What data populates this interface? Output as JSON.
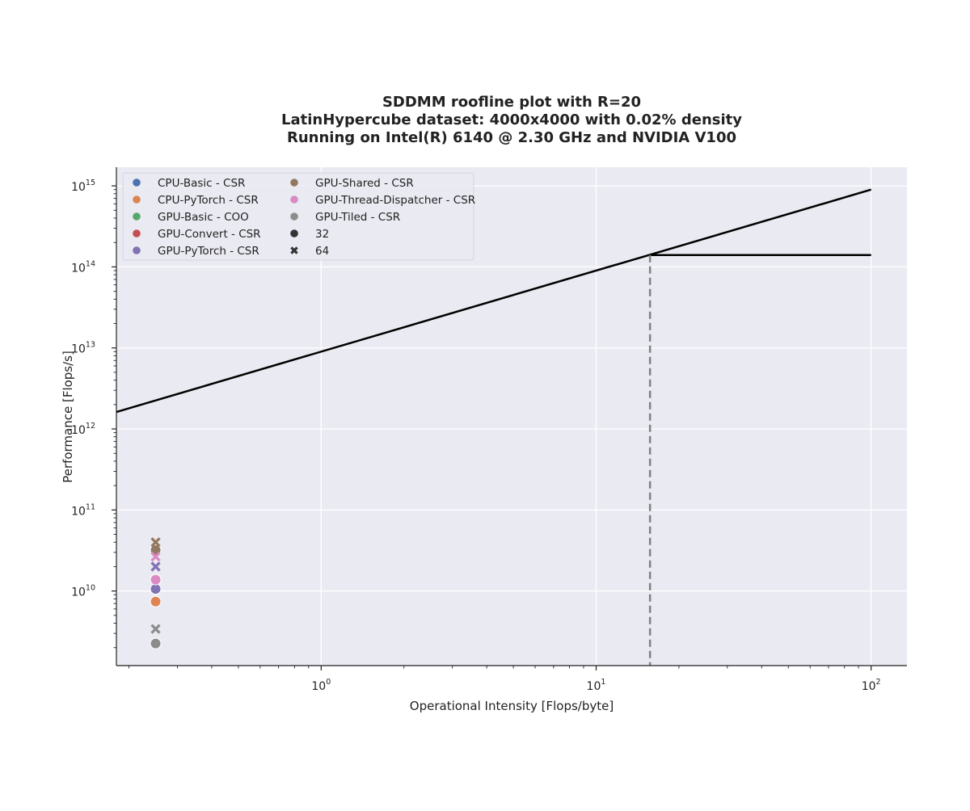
{
  "chart_data": {
    "type": "scatter",
    "title_lines": [
      "SDDMM roofline plot with R=20",
      "LatinHypercube dataset: 4000x4000 with 0.02% density",
      "Running on Intel(R) 6140 @ 2.30 GHz and NVIDIA V100"
    ],
    "xlabel": "Operational Intensity [Flops/byte]",
    "ylabel": "Performance [Flops/s]",
    "x_scale": "log",
    "y_scale": "log",
    "xlim": [
      0.18,
      135
    ],
    "ylim": [
      1200000000.0,
      1700000000000000.0
    ],
    "x_major_ticks": [
      {
        "value": 1,
        "base": "10",
        "exp": "0"
      },
      {
        "value": 10,
        "base": "10",
        "exp": "1"
      },
      {
        "value": 100,
        "base": "10",
        "exp": "2"
      }
    ],
    "y_major_ticks": [
      {
        "value": 10000000000.0,
        "base": "10",
        "exp": "10"
      },
      {
        "value": 100000000000.0,
        "base": "10",
        "exp": "11"
      },
      {
        "value": 1000000000000.0,
        "base": "10",
        "exp": "12"
      },
      {
        "value": 10000000000000.0,
        "base": "10",
        "exp": "13"
      },
      {
        "value": 100000000000000.0,
        "base": "10",
        "exp": "14"
      },
      {
        "value": 1000000000000000.0,
        "base": "10",
        "exp": "15"
      }
    ],
    "grid": true,
    "legend_position": "upper-left",
    "legend": {
      "hue_entries": [
        {
          "label": "CPU-Basic - CSR",
          "color": "#4c72b0"
        },
        {
          "label": "CPU-PyTorch - CSR",
          "color": "#dd8452"
        },
        {
          "label": "GPU-Basic - COO",
          "color": "#55a868"
        },
        {
          "label": "GPU-Convert - CSR",
          "color": "#c44e52"
        },
        {
          "label": "GPU-PyTorch - CSR",
          "color": "#8172b3"
        },
        {
          "label": "GPU-Shared - CSR",
          "color": "#937860"
        },
        {
          "label": "GPU-Thread-Dispatcher - CSR",
          "color": "#da8bc3"
        },
        {
          "label": "GPU-Tiled - CSR",
          "color": "#8c8c8c"
        }
      ],
      "style_entries": [
        {
          "label": "32",
          "marker": "circle"
        },
        {
          "label": "64",
          "marker": "x"
        }
      ]
    },
    "roofline": {
      "memory_bound": [
        [
          0.18,
          1620000000000.0
        ],
        [
          100,
          900000000000000.0
        ]
      ],
      "compute_bound": [
        [
          15.7,
          140000000000000.0
        ],
        [
          100,
          140000000000000.0
        ]
      ],
      "ridge_point_x": 15.7,
      "color": "#000000",
      "ridge_color": "#808080"
    },
    "series": [
      {
        "name": "CPU-Basic - CSR",
        "color": "#4c72b0",
        "points": [
          {
            "x": 0.25,
            "y": 10500000000.0,
            "marker": "circle"
          }
        ]
      },
      {
        "name": "CPU-PyTorch - CSR",
        "color": "#dd8452",
        "points": [
          {
            "x": 0.25,
            "y": 7400000000.0,
            "marker": "circle"
          }
        ]
      },
      {
        "name": "GPU-Basic - COO",
        "color": "#55a868",
        "points": [
          {
            "x": 0.25,
            "y": 13800000000.0,
            "marker": "circle"
          }
        ]
      },
      {
        "name": "GPU-Convert - CSR",
        "color": "#c44e52",
        "points": [
          {
            "x": 0.25,
            "y": 13800000000.0,
            "marker": "circle"
          }
        ]
      },
      {
        "name": "GPU-PyTorch - CSR",
        "color": "#8172b3",
        "points": [
          {
            "x": 0.25,
            "y": 10600000000.0,
            "marker": "circle"
          },
          {
            "x": 0.25,
            "y": 20000000000.0,
            "marker": "x"
          }
        ]
      },
      {
        "name": "GPU-Shared - CSR",
        "color": "#937860",
        "points": [
          {
            "x": 0.25,
            "y": 32000000000.0,
            "marker": "circle"
          },
          {
            "x": 0.25,
            "y": 40000000000.0,
            "marker": "x"
          }
        ]
      },
      {
        "name": "GPU-Thread-Dispatcher - CSR",
        "color": "#da8bc3",
        "points": [
          {
            "x": 0.25,
            "y": 13800000000.0,
            "marker": "circle"
          },
          {
            "x": 0.25,
            "y": 26500000000.0,
            "marker": "x"
          }
        ]
      },
      {
        "name": "GPU-Tiled - CSR",
        "color": "#8c8c8c",
        "points": [
          {
            "x": 0.25,
            "y": 2250000000.0,
            "marker": "circle"
          },
          {
            "x": 0.25,
            "y": 3400000000.0,
            "marker": "x"
          }
        ]
      }
    ]
  }
}
